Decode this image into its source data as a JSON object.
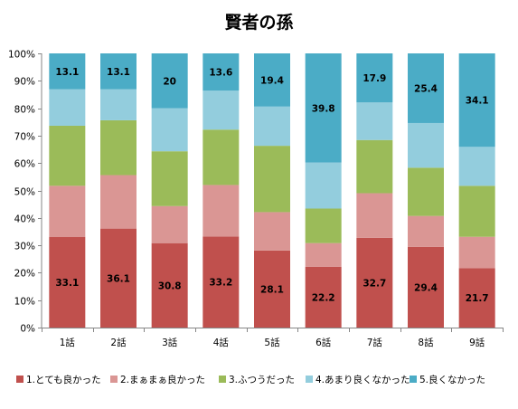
{
  "chart_data": {
    "type": "bar",
    "stacked": true,
    "percent": true,
    "title": "賢者の孫",
    "xlabel": "",
    "ylabel": "",
    "ylim": [
      0,
      100
    ],
    "y_ticks": [
      "0%",
      "10%",
      "20%",
      "30%",
      "40%",
      "50%",
      "60%",
      "70%",
      "80%",
      "90%",
      "100%"
    ],
    "grid": false,
    "legend_position": "bottom",
    "categories": [
      "1話",
      "2話",
      "3話",
      "4話",
      "5話",
      "6話",
      "7話",
      "8話",
      "9話"
    ],
    "series": [
      {
        "name": "1.とても良かった",
        "color": "#c0504d",
        "values": [
          33.1,
          36.1,
          30.8,
          33.2,
          28.1,
          22.2,
          32.7,
          29.4,
          21.7
        ],
        "show_labels": true
      },
      {
        "name": "2.まぁまぁ良かった",
        "color": "#da9694",
        "values": [
          18.6,
          19.5,
          13.5,
          18.8,
          14.0,
          8.6,
          16.3,
          11.3,
          11.4
        ],
        "show_labels": false
      },
      {
        "name": "3.ふつうだった",
        "color": "#9bbb59",
        "values": [
          21.9,
          20.0,
          20.0,
          20.2,
          24.2,
          12.6,
          19.4,
          17.6,
          18.6
        ],
        "show_labels": false
      },
      {
        "name": "4.あまり良くなかった",
        "color": "#93cddd",
        "values": [
          13.3,
          11.3,
          15.7,
          14.2,
          14.3,
          16.8,
          13.7,
          16.3,
          14.2
        ],
        "show_labels": false
      },
      {
        "name": "5.良くなかった",
        "color": "#4bacc6",
        "values": [
          13.1,
          13.1,
          20,
          13.6,
          19.4,
          39.8,
          17.9,
          25.4,
          34.1
        ],
        "show_labels": true
      }
    ],
    "data_labels": {
      "1.とても良かった": [
        "33.1",
        "36.1",
        "30.8",
        "33.2",
        "28.1",
        "22.2",
        "32.7",
        "29.4",
        "21.7"
      ],
      "5.良くなかった": [
        "13.1",
        "13.1",
        "20",
        "13.6",
        "19.4",
        "39.8",
        "17.9",
        "25.4",
        "34.1"
      ]
    }
  }
}
